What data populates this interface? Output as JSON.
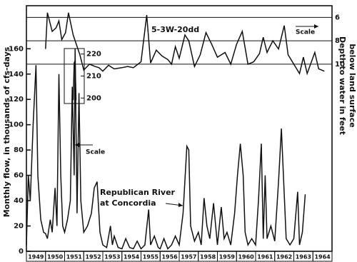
{
  "chart_data": {
    "type": "line",
    "y_label": "Monthly flow, in thousands of cfs-days",
    "y2_label": [
      "Depth to water in feet",
      "below land surface"
    ],
    "annotations": [
      "5-3W-20dd",
      "Scale",
      "Scale",
      "Republican River",
      "at Concordia"
    ],
    "categories": [
      "1949",
      "1950",
      "1951",
      "1952",
      "1953",
      "1954",
      "1955",
      "1956",
      "1957",
      "1958",
      "1959",
      "1960",
      "1961",
      "1962",
      "1963",
      "1964"
    ],
    "xlim": [
      1949,
      1965
    ],
    "ylim": [
      0,
      194
    ],
    "yticks": [
      0,
      20,
      40,
      60,
      80,
      100,
      120,
      140,
      160
    ],
    "y2lim": [
      26,
      5
    ],
    "y2ticks": [
      6,
      8,
      10
    ],
    "series": [
      {
        "color": "#111111",
        "x": [
          1949.0,
          1949.1,
          1949.2,
          1949.35,
          1949.5,
          1949.6,
          1949.75,
          1949.9,
          1950.0,
          1950.1,
          1950.25,
          1950.35,
          1950.5,
          1950.6,
          1950.7,
          1950.8,
          1950.9,
          1951.0,
          1951.15,
          1951.3,
          1951.4,
          1951.5,
          1951.55,
          1951.65,
          1951.75,
          1951.85,
          1952.0,
          1952.2,
          1952.4,
          1952.55,
          1952.7,
          1952.85,
          1953.0,
          1953.2,
          1953.4,
          1953.5,
          1953.6,
          1953.8,
          1954.0,
          1954.2,
          1954.4,
          1954.6,
          1954.8,
          1955.0,
          1955.2,
          1955.4,
          1955.5,
          1955.7,
          1955.9,
          1956.0,
          1956.2,
          1956.4,
          1956.6,
          1956.8,
          1957.0,
          1957.2,
          1957.4,
          1957.5,
          1957.6,
          1957.8,
          1958.0,
          1958.15,
          1958.3,
          1958.45,
          1958.6,
          1958.8,
          1959.0,
          1959.2,
          1959.35,
          1959.5,
          1959.7,
          1959.9,
          1960.05,
          1960.2,
          1960.35,
          1960.45,
          1960.6,
          1960.8,
          1961.0,
          1961.15,
          1961.3,
          1961.4,
          1961.5,
          1961.6,
          1961.8,
          1962.0,
          1962.2,
          1962.35,
          1962.5,
          1962.6,
          1962.8,
          1963.0,
          1963.2,
          1963.3,
          1963.45,
          1963.6
        ],
        "values": [
          5,
          60,
          40,
          100,
          147,
          60,
          25,
          15,
          14,
          10,
          25,
          15,
          50,
          20,
          140,
          60,
          20,
          15,
          25,
          40,
          130,
          60,
          160,
          30,
          125,
          40,
          15,
          20,
          30,
          50,
          55,
          15,
          5,
          3,
          20,
          5,
          12,
          3,
          2,
          10,
          3,
          2,
          8,
          2,
          5,
          33,
          5,
          12,
          3,
          2,
          10,
          2,
          5,
          12,
          5,
          30,
          83,
          80,
          20,
          8,
          15,
          5,
          42,
          20,
          10,
          38,
          5,
          35,
          10,
          15,
          5,
          30,
          60,
          85,
          60,
          15,
          5,
          10,
          5,
          40,
          85,
          10,
          60,
          10,
          20,
          8,
          55,
          97,
          45,
          10,
          5,
          10,
          47,
          5,
          15,
          45
        ]
      },
      {
        "color": "#111111",
        "axis": "y2",
        "x": [
          1950.0,
          1950.1,
          1950.35,
          1950.55,
          1950.7,
          1950.85,
          1951.05,
          1951.2,
          1951.45,
          1951.8,
          1952.0,
          1952.3,
          1952.6,
          1952.8,
          1953.0,
          1953.3,
          1953.6,
          1954.0,
          1954.3,
          1954.6,
          1955.0,
          1955.3,
          1955.5,
          1955.8,
          1956.1,
          1956.4,
          1956.6,
          1956.8,
          1957.0,
          1957.3,
          1957.5,
          1957.8,
          1958.1,
          1958.4,
          1958.7,
          1959.0,
          1959.4,
          1959.7,
          1960.0,
          1960.3,
          1960.6,
          1960.9,
          1961.2,
          1961.4,
          1961.6,
          1961.9,
          1962.2,
          1962.5,
          1962.7,
          1963.0,
          1963.3,
          1963.5,
          1963.7,
          1964.1,
          1964.3,
          1964.6
        ],
        "values": [
          8.7,
          5.6,
          7.2,
          6.9,
          6.3,
          7.9,
          7.3,
          5.6,
          7.5,
          9.2,
          10.5,
          10.0,
          10.2,
          10.3,
          10.6,
          10.1,
          10.4,
          10.3,
          10.2,
          10.3,
          9.8,
          5.8,
          9.9,
          8.8,
          9.3,
          9.6,
          10.0,
          8.5,
          9.5,
          7.5,
          8.0,
          10.2,
          9.2,
          7.3,
          8.3,
          9.4,
          9.0,
          10.0,
          8.3,
          7.2,
          10.0,
          9.8,
          9.1,
          7.7,
          9.0,
          8.0,
          8.7,
          6.7,
          9.2,
          10.0,
          10.8,
          9.4,
          10.8,
          9.0,
          10.4,
          10.6
        ]
      }
    ],
    "inset": {
      "ticks": [
        220,
        210,
        200
      ],
      "ylim": [
        197.5,
        222.5
      ],
      "x": [
        1951.45,
        1951.5,
        1951.55,
        1951.6
      ],
      "values": [
        199,
        216,
        217,
        199
      ]
    }
  }
}
